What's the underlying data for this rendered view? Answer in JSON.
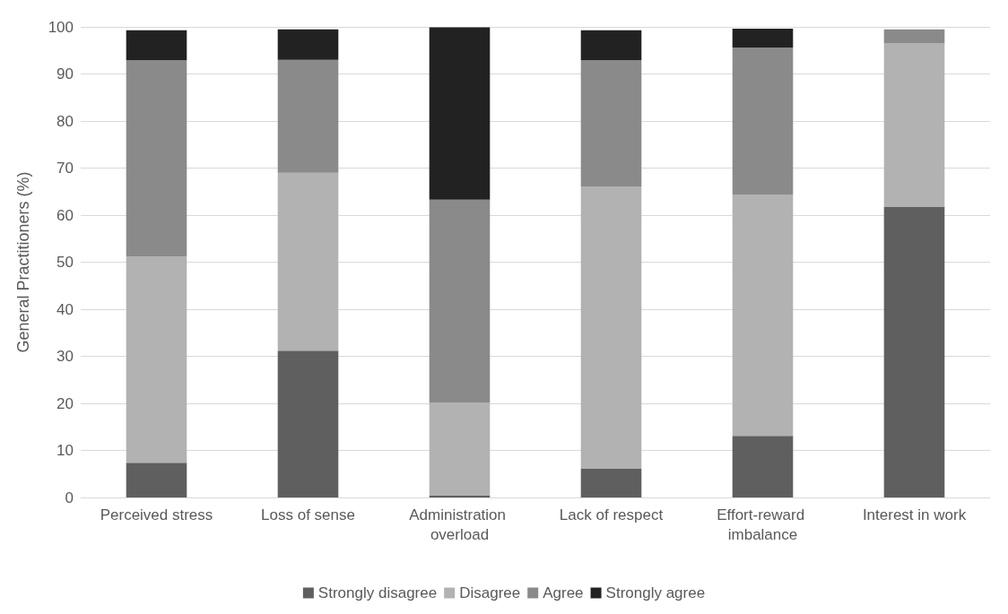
{
  "chart_data": {
    "type": "bar",
    "stacked": true,
    "ylabel": "General Practitioners (%)",
    "categories": [
      "Perceived stress",
      "Loss of sense",
      "Administration overload",
      "Lack of respect",
      "Effort-reward imbalance",
      "Interest in work"
    ],
    "series": [
      {
        "name": "Strongly disagree",
        "color": "#5f5f5f",
        "values": [
          7.4,
          31.2,
          0.4,
          6.1,
          13.1,
          61.8
        ]
      },
      {
        "name": "Disagree",
        "color": "#b2b2b2",
        "values": [
          43.8,
          37.8,
          19.7,
          60.0,
          51.3,
          34.7
        ]
      },
      {
        "name": "Agree",
        "color": "#8a8a8a",
        "values": [
          41.7,
          24.0,
          43.2,
          26.8,
          31.2,
          3.0
        ]
      },
      {
        "name": "Strongly agree",
        "color": "#222222",
        "values": [
          6.4,
          6.5,
          36.6,
          6.4,
          4.0,
          0
        ]
      }
    ],
    "ylim": [
      0,
      100
    ],
    "yticks": [
      0,
      10,
      20,
      30,
      40,
      50,
      60,
      70,
      80,
      90,
      100
    ],
    "grid": "y",
    "legend": "bottom"
  }
}
